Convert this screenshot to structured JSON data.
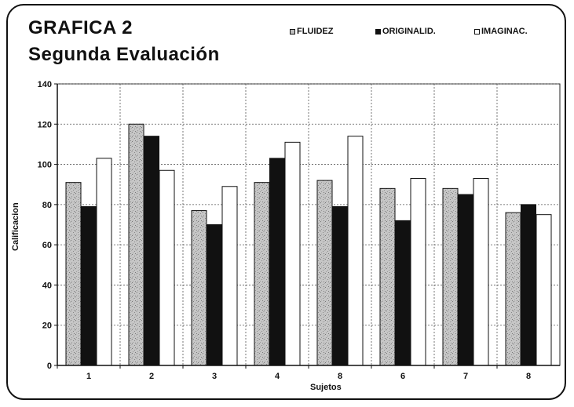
{
  "chart_data": {
    "type": "bar",
    "title": "GRAFICA 2",
    "subtitle": "Segunda Evaluación",
    "xlabel": "Sujetos",
    "ylabel": "Calificacion",
    "categories": [
      "1",
      "2",
      "3",
      "4",
      "8",
      "6",
      "7",
      "8"
    ],
    "ylim": [
      0,
      140
    ],
    "yticks": [
      0,
      20,
      40,
      60,
      80,
      100,
      120,
      140
    ],
    "grid": "on",
    "legend_position": "top",
    "series": [
      {
        "name": "FLUIDEZ",
        "color": "#bdbdbd",
        "values": [
          91,
          120,
          77,
          91,
          92,
          88,
          88,
          76
        ]
      },
      {
        "name": "ORIGINALID.",
        "color": "#111111",
        "values": [
          79,
          114,
          70,
          103,
          79,
          72,
          85,
          80
        ]
      },
      {
        "name": "IMAGINAC.",
        "color": "#ffffff",
        "values": [
          103,
          97,
          89,
          111,
          114,
          93,
          93,
          75
        ]
      }
    ]
  }
}
